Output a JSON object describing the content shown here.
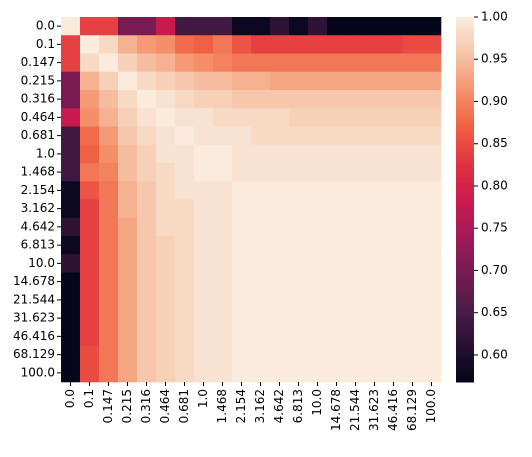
{
  "chart_data": {
    "type": "heatmap",
    "colormap": "rocket",
    "categories": [
      "0.0",
      "0.1",
      "0.147",
      "0.215",
      "0.316",
      "0.464",
      "0.681",
      "1.0",
      "1.468",
      "2.154",
      "3.162",
      "4.642",
      "6.813",
      "10.0",
      "14.678",
      "21.544",
      "31.623",
      "46.416",
      "68.129",
      "100.0"
    ],
    "values": [
      [
        1,
        0.84,
        0.84,
        0.7,
        0.7,
        0.78,
        0.64,
        0.64,
        0.64,
        0.58,
        0.58,
        0.62,
        0.58,
        0.62,
        0.57,
        0.57,
        0.57,
        0.57,
        0.57,
        0.57
      ],
      [
        0.84,
        1,
        0.98,
        0.94,
        0.92,
        0.91,
        0.88,
        0.87,
        0.89,
        0.86,
        0.84,
        0.84,
        0.84,
        0.84,
        0.84,
        0.84,
        0.84,
        0.84,
        0.85,
        0.85
      ],
      [
        0.84,
        0.98,
        1,
        0.97,
        0.95,
        0.94,
        0.92,
        0.91,
        0.9,
        0.89,
        0.89,
        0.89,
        0.89,
        0.89,
        0.89,
        0.89,
        0.89,
        0.89,
        0.89,
        0.89
      ],
      [
        0.7,
        0.94,
        0.97,
        1,
        0.98,
        0.97,
        0.96,
        0.95,
        0.95,
        0.94,
        0.94,
        0.93,
        0.93,
        0.93,
        0.93,
        0.93,
        0.93,
        0.93,
        0.93,
        0.93
      ],
      [
        0.7,
        0.92,
        0.95,
        0.98,
        1,
        0.99,
        0.98,
        0.97,
        0.97,
        0.96,
        0.96,
        0.96,
        0.96,
        0.96,
        0.96,
        0.96,
        0.96,
        0.96,
        0.96,
        0.96
      ],
      [
        0.78,
        0.91,
        0.94,
        0.97,
        0.99,
        1,
        0.99,
        0.99,
        0.98,
        0.98,
        0.98,
        0.98,
        0.97,
        0.97,
        0.97,
        0.97,
        0.97,
        0.97,
        0.97,
        0.97
      ],
      [
        0.64,
        0.88,
        0.92,
        0.96,
        0.98,
        0.99,
        1,
        0.99,
        0.99,
        0.99,
        0.98,
        0.98,
        0.98,
        0.98,
        0.98,
        0.98,
        0.98,
        0.98,
        0.98,
        0.98
      ],
      [
        0.64,
        0.87,
        0.91,
        0.95,
        0.97,
        0.99,
        0.99,
        1,
        1,
        0.99,
        0.99,
        0.99,
        0.99,
        0.99,
        0.99,
        0.99,
        0.99,
        0.99,
        0.99,
        0.99
      ],
      [
        0.64,
        0.89,
        0.9,
        0.95,
        0.97,
        0.98,
        0.99,
        1,
        1,
        0.99,
        0.99,
        0.99,
        0.99,
        0.99,
        0.99,
        0.99,
        0.99,
        0.99,
        0.99,
        0.99
      ],
      [
        0.58,
        0.86,
        0.89,
        0.94,
        0.96,
        0.98,
        0.99,
        0.99,
        0.99,
        1,
        1,
        1,
        1,
        1,
        1,
        1,
        1,
        1,
        1,
        1
      ],
      [
        0.58,
        0.84,
        0.89,
        0.94,
        0.96,
        0.98,
        0.98,
        0.99,
        0.99,
        1,
        1,
        1,
        1,
        1,
        1,
        1,
        1,
        1,
        1,
        1
      ],
      [
        0.62,
        0.84,
        0.89,
        0.93,
        0.96,
        0.98,
        0.98,
        0.99,
        0.99,
        1,
        1,
        1,
        1,
        1,
        1,
        1,
        1,
        1,
        1,
        1
      ],
      [
        0.58,
        0.84,
        0.89,
        0.93,
        0.96,
        0.97,
        0.98,
        0.99,
        0.99,
        1,
        1,
        1,
        1,
        1,
        1,
        1,
        1,
        1,
        1,
        1
      ],
      [
        0.62,
        0.84,
        0.89,
        0.93,
        0.96,
        0.97,
        0.98,
        0.99,
        0.99,
        1,
        1,
        1,
        1,
        1,
        1,
        1,
        1,
        1,
        1,
        1
      ],
      [
        0.57,
        0.84,
        0.89,
        0.93,
        0.96,
        0.97,
        0.98,
        0.99,
        0.99,
        1,
        1,
        1,
        1,
        1,
        1,
        1,
        1,
        1,
        1,
        1
      ],
      [
        0.57,
        0.84,
        0.89,
        0.93,
        0.96,
        0.97,
        0.98,
        0.99,
        0.99,
        1,
        1,
        1,
        1,
        1,
        1,
        1,
        1,
        1,
        1,
        1
      ],
      [
        0.57,
        0.84,
        0.89,
        0.93,
        0.96,
        0.97,
        0.98,
        0.99,
        0.99,
        1,
        1,
        1,
        1,
        1,
        1,
        1,
        1,
        1,
        1,
        1
      ],
      [
        0.57,
        0.84,
        0.89,
        0.93,
        0.96,
        0.97,
        0.98,
        0.99,
        0.99,
        1,
        1,
        1,
        1,
        1,
        1,
        1,
        1,
        1,
        1,
        1
      ],
      [
        0.57,
        0.85,
        0.89,
        0.93,
        0.96,
        0.97,
        0.98,
        0.99,
        0.99,
        1,
        1,
        1,
        1,
        1,
        1,
        1,
        1,
        1,
        1,
        1
      ],
      [
        0.57,
        0.85,
        0.89,
        0.93,
        0.96,
        0.97,
        0.98,
        0.99,
        0.99,
        1,
        1,
        1,
        1,
        1,
        1,
        1,
        1,
        1,
        1,
        1
      ]
    ],
    "clim": [
      0.568,
      1.0
    ],
    "cticks": [
      {
        "value": 0.6,
        "label": "0.60"
      },
      {
        "value": 0.65,
        "label": "0.65"
      },
      {
        "value": 0.7,
        "label": "0.70"
      },
      {
        "value": 0.75,
        "label": "0.75"
      },
      {
        "value": 0.8,
        "label": "0.80"
      },
      {
        "value": 0.85,
        "label": "0.85"
      },
      {
        "value": 0.9,
        "label": "0.90"
      },
      {
        "value": 0.95,
        "label": "0.95"
      },
      {
        "value": 1.0,
        "label": "1.00"
      }
    ]
  }
}
